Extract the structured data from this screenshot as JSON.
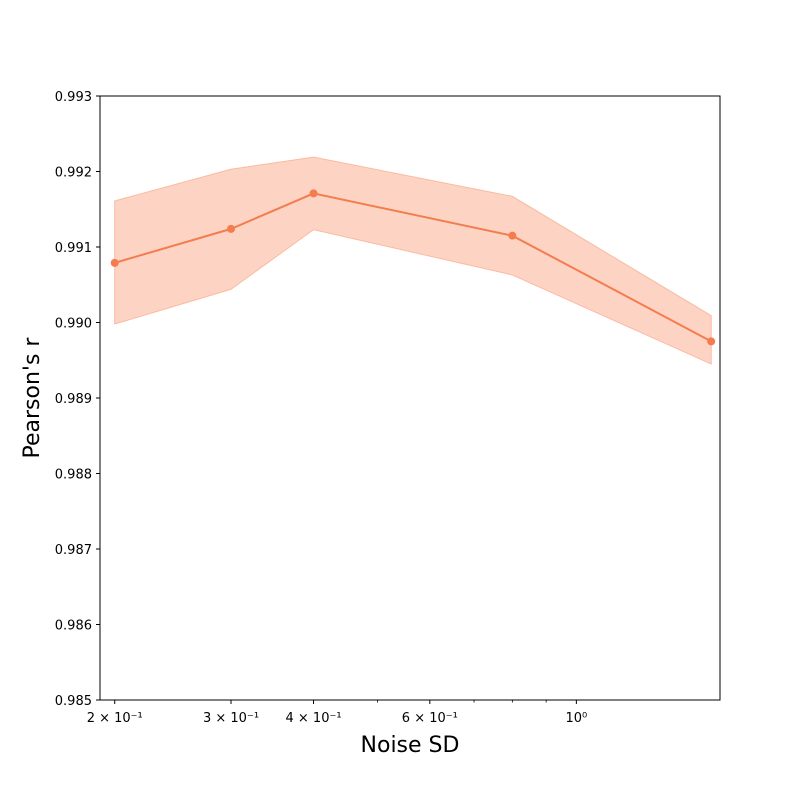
{
  "chart_data": {
    "type": "line",
    "title": "",
    "xlabel": "Noise SD",
    "ylabel": "Pearson's r",
    "xscale": "log",
    "xlim": [
      0.19,
      1.65
    ],
    "ylim": [
      0.985,
      0.993
    ],
    "grid": false,
    "x_ticks": [
      {
        "value": 0.2,
        "label": "2 × 10⁻¹"
      },
      {
        "value": 0.3,
        "label": "3 × 10⁻¹"
      },
      {
        "value": 0.4,
        "label": "4 × 10⁻¹"
      },
      {
        "value": 0.6,
        "label": "6 × 10⁻¹"
      },
      {
        "value": 1.0,
        "label": "10⁰"
      }
    ],
    "x_minor_ticks": [
      0.5,
      0.7,
      0.8,
      0.9
    ],
    "y_ticks": [
      {
        "value": 0.985,
        "label": "0.985"
      },
      {
        "value": 0.986,
        "label": "0.986"
      },
      {
        "value": 0.987,
        "label": "0.987"
      },
      {
        "value": 0.988,
        "label": "0.988"
      },
      {
        "value": 0.989,
        "label": "0.989"
      },
      {
        "value": 0.99,
        "label": "0.990"
      },
      {
        "value": 0.991,
        "label": "0.991"
      },
      {
        "value": 0.992,
        "label": "0.992"
      },
      {
        "value": 0.993,
        "label": "0.993"
      }
    ],
    "series": [
      {
        "x": [
          0.2,
          0.3,
          0.4,
          0.8,
          1.6
        ],
        "y": [
          0.99079,
          0.99124,
          0.99171,
          0.99115,
          0.98975
        ],
        "lower": [
          0.98998,
          0.99044,
          0.99123,
          0.99063,
          0.98945
        ],
        "upper": [
          0.99161,
          0.99203,
          0.99219,
          0.99167,
          0.99009
        ],
        "color": "#f47c4e",
        "band_color": "#fbb9a0"
      }
    ]
  }
}
